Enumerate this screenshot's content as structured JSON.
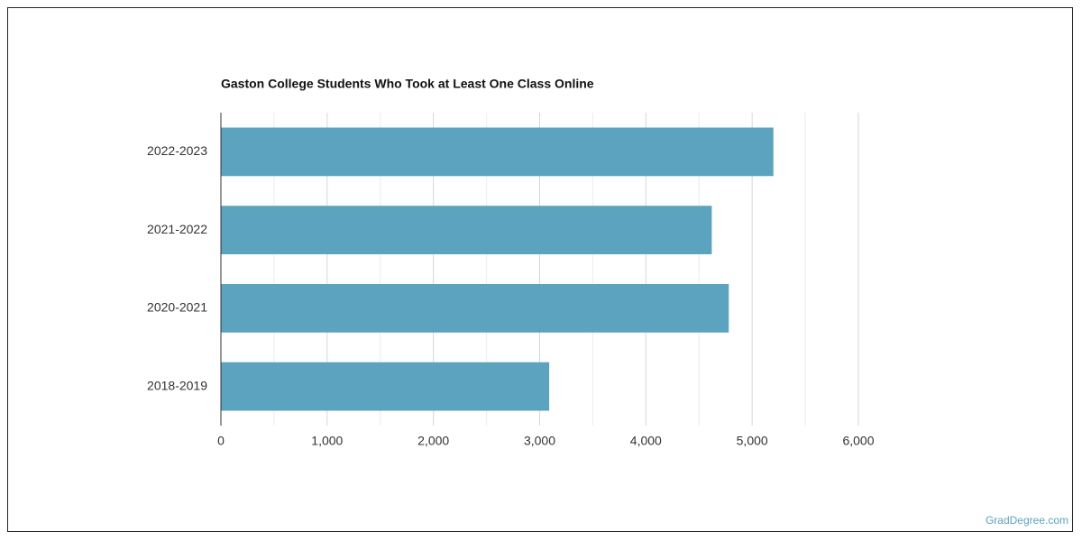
{
  "chart_data": {
    "type": "hbar",
    "title": "Gaston College Students Who Took at Least One Class Online",
    "categories": [
      "2022-2023",
      "2021-2022",
      "2020-2021",
      "2018-2019"
    ],
    "values": [
      5200,
      4620,
      4780,
      3090
    ],
    "color": "#5ba3be",
    "xlim": [
      0,
      6000
    ],
    "xticks": [
      0,
      {
        "value": 1000,
        "label": "1,000"
      },
      {
        "value": 2000,
        "label": "2,000"
      },
      {
        "value": 3000,
        "label": "3,000"
      },
      {
        "value": 4000,
        "label": "4,000"
      },
      {
        "value": 5000,
        "label": "5,000"
      },
      {
        "value": 6000,
        "label": "6,000"
      }
    ],
    "minor_xticks": [
      500,
      1500,
      2500,
      3500,
      4500,
      5500
    ],
    "grid": true
  },
  "footer": "GradDegree.com"
}
